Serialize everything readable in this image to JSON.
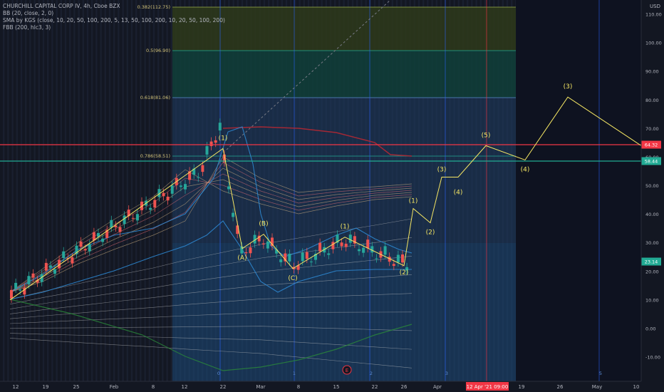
{
  "legend": {
    "symbol_line": "CHURCHILL CAPITAL CORP IV, 4h, Cboe BZX",
    "bb_line": "BB (20, close, 2, 0)",
    "sma_line": "SMA by KGS (close, 10, 20, 50, 100, 200, 5, 13, 50, 100, 200, 10, 20, 50, 100, 200)",
    "fbb_line": "FBB (200, hlc3, 3)"
  },
  "colors": {
    "background": "#131722",
    "fib_0382_zone": "#2e3a1a",
    "fib_05_zone": "#10403a",
    "fib_0618_zone": "#1e3a5f",
    "lower_zone": "#1e4a7a",
    "red_line": "#f23645",
    "green_line": "#22ab94",
    "wave_yellow": "#f5e663",
    "fib_label": "#d1c27a",
    "axis_text": "#b2b5be"
  },
  "chart_data": {
    "type": "line",
    "title": "CHURCHILL CAPITAL CORP IV, 4h, Cboe BZX",
    "currency": "USD",
    "ylim": [
      -15,
      115
    ],
    "y_ticks": [
      110,
      100,
      90,
      80,
      70,
      60,
      50,
      40,
      30,
      20,
      10,
      0,
      -10
    ],
    "y_tick_labels": [
      "110.00",
      "100.00",
      "90.00",
      "80.00",
      "70.00",
      "60.00",
      "50.00",
      "40.00",
      "30.00",
      "20.00",
      "10.00",
      "0.00",
      "-10.00"
    ],
    "x_ticks": [
      "12",
      "19",
      "25",
      "Feb",
      "8",
      "12",
      "22",
      "Mar",
      "8",
      "15",
      "22",
      "26",
      "Apr",
      "19",
      "26",
      "May",
      "10"
    ],
    "price_tags": [
      {
        "label": "64.32",
        "value": 64.32,
        "color": "#f23645"
      },
      {
        "label": "58.44",
        "value": 58.44,
        "color": "#22ab94"
      },
      {
        "label": "23.14",
        "value": 23.14,
        "color": "#22ab94"
      }
    ],
    "fib_levels": [
      {
        "label": "0.382(112.75)",
        "value": 112.75
      },
      {
        "label": "0.5(96.90)",
        "value": 96.9
      },
      {
        "label": "0.618(81.06)",
        "value": 81.06
      },
      {
        "label": "0.786(58.51)",
        "value": 58.51
      }
    ],
    "time_label": "12 Apr '21   09:00",
    "cycle_markers": [
      "0",
      "1",
      "2",
      "3",
      "5"
    ],
    "event_marker": "E",
    "wave_labels": [
      {
        "label": "(1)",
        "x": "Feb 19",
        "value": 66
      },
      {
        "label": "(A)",
        "x": "Feb 25",
        "value": 24
      },
      {
        "label": "(B)",
        "x": "Mar 1",
        "value": 36
      },
      {
        "label": "(C)",
        "x": "Mar 8",
        "value": 17
      },
      {
        "label": "(1)",
        "x": "Mar 15",
        "value": 35
      },
      {
        "label": "(2)",
        "x": "Mar 26",
        "value": 19
      },
      {
        "label": "(1)",
        "x": "Mar 27",
        "value": 44
      },
      {
        "label": "(2)",
        "x": "Mar 29",
        "value": 33
      },
      {
        "label": "(3)",
        "x": "Apr 1",
        "value": 55
      },
      {
        "label": "(4)",
        "x": "Apr 3",
        "value": 47
      },
      {
        "label": "(5)",
        "x": "Apr 12",
        "value": 67
      },
      {
        "label": "(4)",
        "x": "Apr 19",
        "value": 55
      },
      {
        "label": "(3)",
        "x": "Apr 26",
        "value": 84
      }
    ],
    "wave_path": [
      {
        "x": "Jan 12",
        "value": 10
      },
      {
        "x": "Feb 19",
        "value": 63
      },
      {
        "x": "Feb 25",
        "value": 28
      },
      {
        "x": "Mar 1",
        "value": 33
      },
      {
        "x": "Mar 8",
        "value": 21
      },
      {
        "x": "Mar 15",
        "value": 32
      },
      {
        "x": "Mar 26",
        "value": 22
      },
      {
        "x": "Mar 27",
        "value": 42
      },
      {
        "x": "Mar 29",
        "value": 37
      },
      {
        "x": "Apr 1",
        "value": 53
      },
      {
        "x": "Apr 3",
        "value": 53
      },
      {
        "x": "Apr 12",
        "value": 64
      },
      {
        "x": "Apr 19",
        "value": 59
      },
      {
        "x": "Apr 26",
        "value": 81
      },
      {
        "x": "May 10",
        "value": 64
      }
    ]
  }
}
